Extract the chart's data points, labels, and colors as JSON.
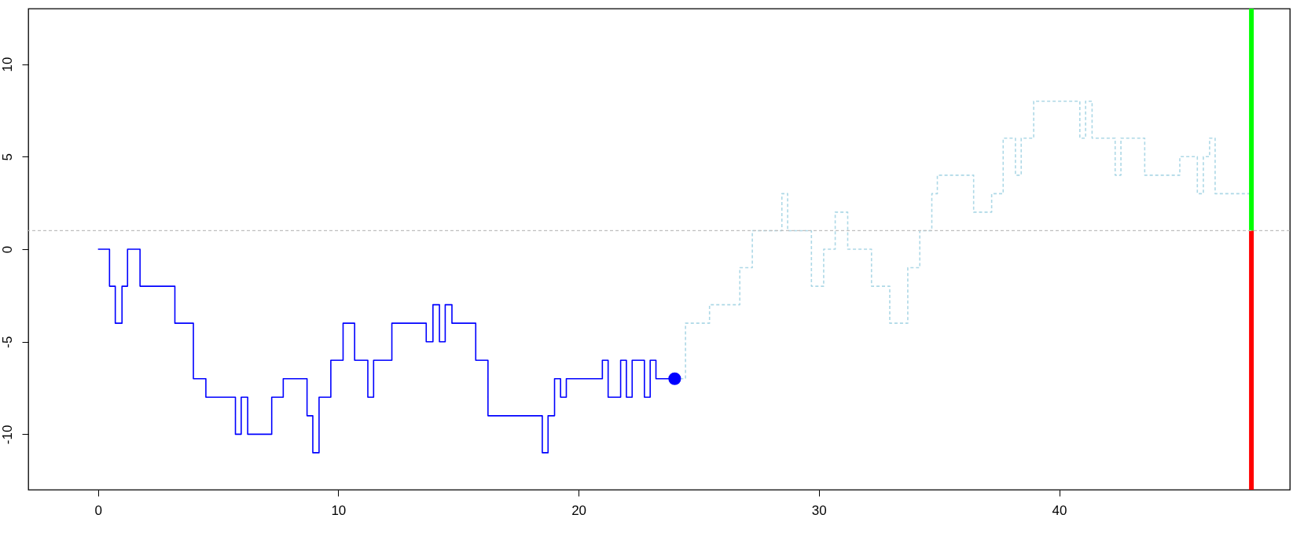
{
  "chart_data": {
    "type": "step",
    "xlim": [
      -2.9,
      49.6
    ],
    "ylim": [
      -13,
      13
    ],
    "xticks": [
      0,
      10,
      20,
      30,
      40
    ],
    "yticks": [
      -10,
      -5,
      0,
      5,
      10
    ],
    "grid": false,
    "series": [
      {
        "color": "#add8e6",
        "line_style": "dashed",
        "x": [
          24,
          24.45,
          25.45,
          26.71,
          27.23,
          28.46,
          28.7,
          29.69,
          30.2,
          30.68,
          31.2,
          32.19,
          32.95,
          33.7,
          34.2,
          34.7,
          34.93,
          36.44,
          37.19,
          37.67,
          38.18,
          38.42,
          38.94,
          40.86,
          41.1,
          41.37,
          42.33,
          42.57,
          43.56,
          45.02,
          45.75,
          46.0,
          46.26,
          46.49,
          48
        ],
        "values": [
          -7,
          -4,
          -3,
          -1,
          1,
          3,
          1,
          -2,
          0,
          2,
          0,
          -2,
          -4,
          -1,
          1,
          3,
          4,
          2,
          3,
          6,
          4,
          6,
          8,
          6,
          8,
          6,
          4,
          6,
          4,
          5,
          3,
          5,
          6,
          3,
          3
        ]
      },
      {
        "color": "#0000ff",
        "line_style": "solid",
        "x": [
          0,
          0.48,
          0.72,
          1.0,
          1.23,
          1.75,
          3.2,
          3.97,
          4.49,
          5.72,
          5.96,
          6.23,
          7.23,
          7.71,
          8.7,
          8.94,
          9.2,
          9.69,
          10.2,
          10.68,
          11.23,
          11.47,
          12.23,
          13.66,
          13.94,
          14.21,
          14.45,
          14.73,
          15.72,
          16.23,
          18.49,
          18.73,
          19.0,
          19.25,
          19.49,
          20.99,
          21.23,
          21.75,
          21.99,
          22.23,
          22.74,
          22.98,
          23.22,
          24
        ],
        "values": [
          0,
          -2,
          -4,
          -2,
          0,
          -2,
          -4,
          -7,
          -8,
          -10,
          -8,
          -10,
          -8,
          -7,
          -9,
          -11,
          -8,
          -6,
          -4,
          -6,
          -8,
          -6,
          -4,
          -5,
          -3,
          -5,
          -3,
          -4,
          -6,
          -9,
          -11,
          -9,
          -7,
          -8,
          -7,
          -6,
          -8,
          -6,
          -8,
          -6,
          -8,
          -6,
          -7,
          -7
        ]
      },
      {
        "type": "scatter",
        "color": "#0000ff",
        "marker": "circle",
        "x": [
          24
        ],
        "values": [
          -7
        ]
      },
      {
        "type": "line",
        "color": "#00ff00",
        "line_style": "solid",
        "x": [
          48,
          48
        ],
        "values": [
          1,
          13
        ]
      },
      {
        "type": "line",
        "color": "#ff0000",
        "line_style": "solid",
        "x": [
          48,
          48
        ],
        "values": [
          1,
          -13
        ]
      }
    ],
    "ref_lines": [
      {
        "axis": "y",
        "value": 1,
        "color": "#bebebe",
        "line_style": "dashed"
      }
    ]
  }
}
